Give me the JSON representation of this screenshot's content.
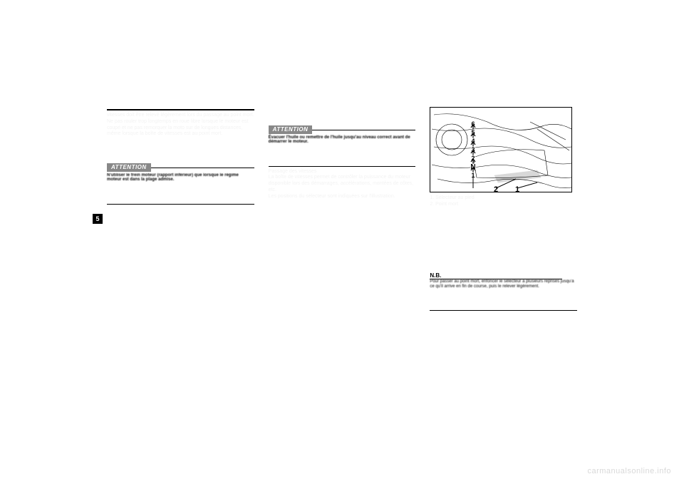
{
  "chapter_number": "5",
  "watermark": "carmanualsonline.info",
  "attention_label": "ATTENTION",
  "nb_label": "N.B.",
  "col1": {
    "para1": "vitesses doit être relevé légèrement lors du passage au point mort.",
    "para2": "Ne pas rouler trop longtemps en roue libre lorsque le moteur est coupé et ne pas remorquer la moto sur de longues distances, même lorsque la boîte de vitesses est au point mort.",
    "attn_text": "N'utiliser le frein moteur (rapport inférieur) que lorsque le régime moteur est dans la plage admise."
  },
  "col2": {
    "attn_text": "Évacuer l'huile ou remettre de l'huile jusqu'au niveau correct avant de démarrer le moteur.",
    "para1": "Passage des vitesses",
    "para2": "La boîte de vitesses permet de contrôler la puissance du moteur disponible lors des démarrages, accélérations, montées de côtes, etc.",
    "para3": "Les positions du sélecteur sont indiquées sur l'illustration."
  },
  "col3": {
    "illus": {
      "gears": [
        "6",
        "5",
        "4",
        "3",
        "2",
        "N",
        "1"
      ],
      "callouts": [
        "2",
        "1"
      ],
      "leader_targets": [
        [
          120,
          100
        ],
        [
          150,
          105
        ]
      ],
      "colors": {
        "stroke": "#000000",
        "fill": "#ffffff"
      }
    },
    "caption1": "1. Sélecteur au pied",
    "caption2": "2. Point mort",
    "nb_text": "Pour passer au point mort, enfoncer le sélecteur à plusieurs reprises jusqu'à ce qu'il arrive en fin de course, puis le relever légèrement."
  }
}
